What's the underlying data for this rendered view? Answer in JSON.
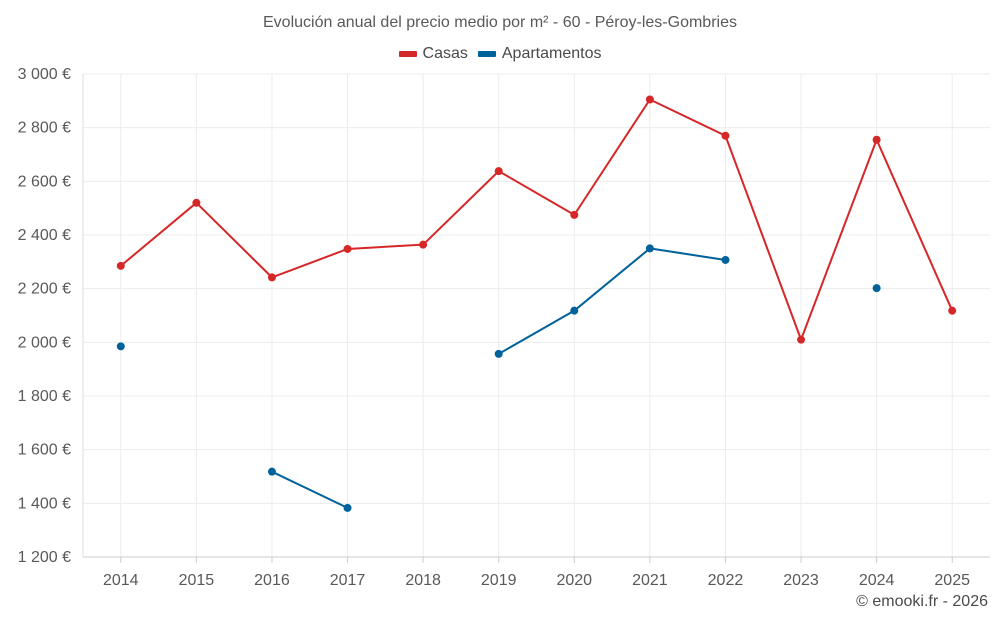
{
  "chart_data": {
    "type": "line",
    "title": "Evolución anual del precio medio por m² - 60 - Péroy-les-Gombries",
    "xlabel": "",
    "ylabel": "",
    "categories": [
      "2014",
      "2015",
      "2016",
      "2017",
      "2018",
      "2019",
      "2020",
      "2021",
      "2022",
      "2023",
      "2024",
      "2025"
    ],
    "ylim": [
      1200,
      3000
    ],
    "yticks": [
      1200,
      1400,
      1600,
      1800,
      2000,
      2200,
      2400,
      2600,
      2800,
      3000
    ],
    "ytick_labels": [
      "1 200 €",
      "1 400 €",
      "1 600 €",
      "1 800 €",
      "2 000 €",
      "2 200 €",
      "2 400 €",
      "2 600 €",
      "2 800 €",
      "3 000 €"
    ],
    "grid": true,
    "legend_position": "top-center",
    "series": [
      {
        "name": "Casas",
        "color": "#d62728",
        "values": [
          2285,
          2520,
          2242,
          2348,
          2364,
          2638,
          2475,
          2905,
          2770,
          2010,
          2755,
          2118
        ]
      },
      {
        "name": "Apartamentos",
        "color": "#00629b",
        "values": [
          1985,
          null,
          1518,
          1383,
          null,
          1957,
          2118,
          2350,
          2307,
          null,
          2202,
          null
        ]
      }
    ]
  },
  "credit": "© emooki.fr - 2026"
}
